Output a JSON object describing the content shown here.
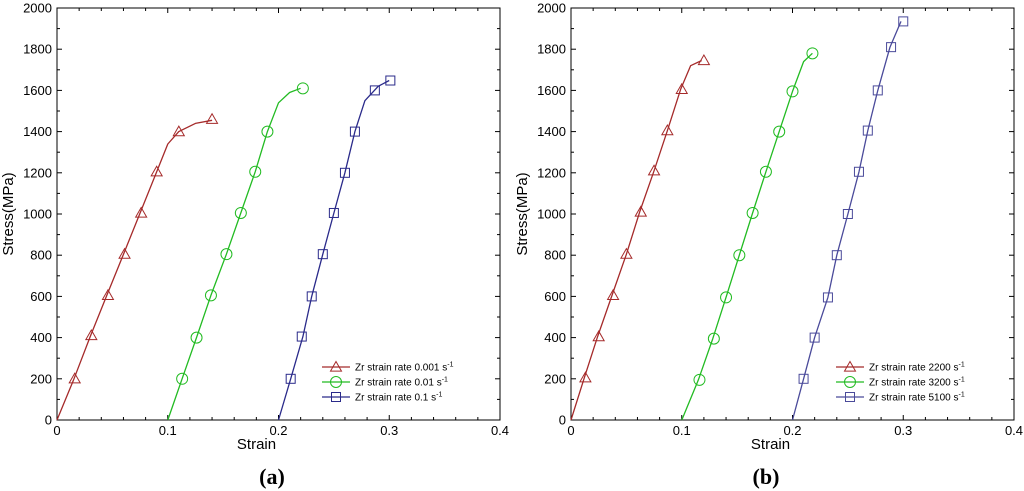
{
  "chart_data": [
    {
      "type": "line",
      "panel_label": "(a)",
      "xlabel": "Strain",
      "ylabel": "Stress(MPa)",
      "xlim": [
        0,
        0.4
      ],
      "ylim": [
        0,
        2000
      ],
      "xticks": [
        0,
        0.1,
        0.2,
        0.3,
        0.4
      ],
      "xtick_labels": [
        "0",
        "0.1",
        "0.2",
        "0.3",
        "0.4"
      ],
      "yticks": [
        0,
        200,
        400,
        600,
        800,
        1000,
        1200,
        1400,
        1600,
        1800,
        2000
      ],
      "ytick_labels": [
        "0",
        "200",
        "400",
        "600",
        "800",
        "1000",
        "1200",
        "1400",
        "1600",
        "1800",
        "2000"
      ],
      "legend_position": "bottom-right",
      "series": [
        {
          "name": "Zr strain rate 0.001",
          "unit": "s",
          "exponent": "-1",
          "color": "#a52a2a",
          "marker": "triangle",
          "curve": [
            [
              0,
              0
            ],
            [
              0.015,
              195
            ],
            [
              0.03,
              405
            ],
            [
              0.045,
              605
            ],
            [
              0.06,
              805
            ],
            [
              0.075,
              1005
            ],
            [
              0.09,
              1205
            ],
            [
              0.1,
              1340
            ],
            [
              0.11,
              1400
            ],
            [
              0.125,
              1440
            ],
            [
              0.14,
              1455
            ]
          ],
          "markers": [
            [
              0.016,
              200
            ],
            [
              0.031,
              410
            ],
            [
              0.046,
              605
            ],
            [
              0.061,
              805
            ],
            [
              0.076,
              1005
            ],
            [
              0.09,
              1205
            ],
            [
              0.11,
              1400
            ],
            [
              0.14,
              1460
            ]
          ]
        },
        {
          "name": "Zr strain rate 0.01",
          "unit": "s",
          "exponent": "-1",
          "color": "#22bb22",
          "marker": "circle",
          "curve": [
            [
              0.1,
              0
            ],
            [
              0.113,
              200
            ],
            [
              0.126,
              400
            ],
            [
              0.139,
              605
            ],
            [
              0.153,
              805
            ],
            [
              0.166,
              1005
            ],
            [
              0.179,
              1205
            ],
            [
              0.19,
              1400
            ],
            [
              0.2,
              1540
            ],
            [
              0.21,
              1590
            ],
            [
              0.22,
              1610
            ]
          ],
          "markers": [
            [
              0.113,
              200
            ],
            [
              0.126,
              400
            ],
            [
              0.139,
              605
            ],
            [
              0.153,
              805
            ],
            [
              0.166,
              1005
            ],
            [
              0.179,
              1205
            ],
            [
              0.19,
              1400
            ],
            [
              0.222,
              1610
            ]
          ]
        },
        {
          "name": "Zr strain rate 0.1",
          "unit": "s",
          "exponent": "-1",
          "color": "#2a2a8a",
          "marker": "square",
          "curve": [
            [
              0.2,
              0
            ],
            [
              0.211,
              200
            ],
            [
              0.222,
              405
            ],
            [
              0.23,
              600
            ],
            [
              0.24,
              805
            ],
            [
              0.25,
              1005
            ],
            [
              0.26,
              1200
            ],
            [
              0.269,
              1400
            ],
            [
              0.278,
              1550
            ],
            [
              0.29,
              1620
            ],
            [
              0.3,
              1648
            ]
          ],
          "markers": [
            [
              0.211,
              200
            ],
            [
              0.221,
              405
            ],
            [
              0.23,
              600
            ],
            [
              0.24,
              805
            ],
            [
              0.25,
              1005
            ],
            [
              0.26,
              1200
            ],
            [
              0.269,
              1400
            ],
            [
              0.287,
              1600
            ],
            [
              0.301,
              1648
            ]
          ]
        }
      ]
    },
    {
      "type": "line",
      "panel_label": "(b)",
      "xlabel": "Strain",
      "ylabel": "Stress(MPa)",
      "xlim": [
        0,
        0.4
      ],
      "ylim": [
        0,
        2000
      ],
      "xticks": [
        0,
        0.1,
        0.2,
        0.3,
        0.4
      ],
      "xtick_labels": [
        "0",
        "0.1",
        "0.2",
        "0.3",
        "0.4"
      ],
      "yticks": [
        0,
        200,
        400,
        600,
        800,
        1000,
        1200,
        1400,
        1600,
        1800,
        2000
      ],
      "ytick_labels": [
        "0",
        "200",
        "400",
        "600",
        "800",
        "1000",
        "1200",
        "1400",
        "1600",
        "1800",
        "2000"
      ],
      "legend_position": "bottom-right",
      "series": [
        {
          "name": "Zr strain rate 2200",
          "unit": "s",
          "exponent": "-1",
          "color": "#a52a2a",
          "marker": "triangle",
          "curve": [
            [
              0,
              0
            ],
            [
              0.012,
              205
            ],
            [
              0.024,
              405
            ],
            [
              0.037,
              605
            ],
            [
              0.05,
              805
            ],
            [
              0.062,
              1010
            ],
            [
              0.075,
              1210
            ],
            [
              0.087,
              1405
            ],
            [
              0.099,
              1605
            ],
            [
              0.108,
              1720
            ],
            [
              0.118,
              1745
            ]
          ],
          "markers": [
            [
              0.013,
              205
            ],
            [
              0.025,
              405
            ],
            [
              0.038,
              605
            ],
            [
              0.05,
              805
            ],
            [
              0.063,
              1010
            ],
            [
              0.075,
              1210
            ],
            [
              0.087,
              1405
            ],
            [
              0.1,
              1605
            ],
            [
              0.12,
              1745
            ]
          ]
        },
        {
          "name": "Zr strain rate 3200",
          "unit": "s",
          "exponent": "-1",
          "color": "#22bb22",
          "marker": "circle",
          "curve": [
            [
              0.1,
              0
            ],
            [
              0.115,
              195
            ],
            [
              0.128,
              395
            ],
            [
              0.14,
              595
            ],
            [
              0.152,
              800
            ],
            [
              0.164,
              1005
            ],
            [
              0.176,
              1205
            ],
            [
              0.188,
              1400
            ],
            [
              0.2,
              1595
            ],
            [
              0.21,
              1740
            ],
            [
              0.218,
              1780
            ]
          ],
          "markers": [
            [
              0.116,
              195
            ],
            [
              0.129,
              395
            ],
            [
              0.14,
              595
            ],
            [
              0.152,
              800
            ],
            [
              0.164,
              1005
            ],
            [
              0.176,
              1205
            ],
            [
              0.188,
              1400
            ],
            [
              0.2,
              1595
            ],
            [
              0.218,
              1780
            ]
          ]
        },
        {
          "name": "Zr strain rate 5100",
          "unit": "s",
          "exponent": "-1",
          "color": "#4a4a9a",
          "marker": "square",
          "curve": [
            [
              0.2,
              0
            ],
            [
              0.21,
              200
            ],
            [
              0.22,
              400
            ],
            [
              0.232,
              595
            ],
            [
              0.24,
              800
            ],
            [
              0.25,
              1000
            ],
            [
              0.26,
              1205
            ],
            [
              0.268,
              1405
            ],
            [
              0.277,
              1600
            ],
            [
              0.288,
              1810
            ],
            [
              0.298,
              1935
            ]
          ],
          "markers": [
            [
              0.21,
              200
            ],
            [
              0.22,
              400
            ],
            [
              0.232,
              595
            ],
            [
              0.24,
              800
            ],
            [
              0.25,
              1000
            ],
            [
              0.26,
              1205
            ],
            [
              0.268,
              1405
            ],
            [
              0.277,
              1600
            ],
            [
              0.289,
              1810
            ],
            [
              0.3,
              1935
            ]
          ]
        }
      ]
    }
  ]
}
